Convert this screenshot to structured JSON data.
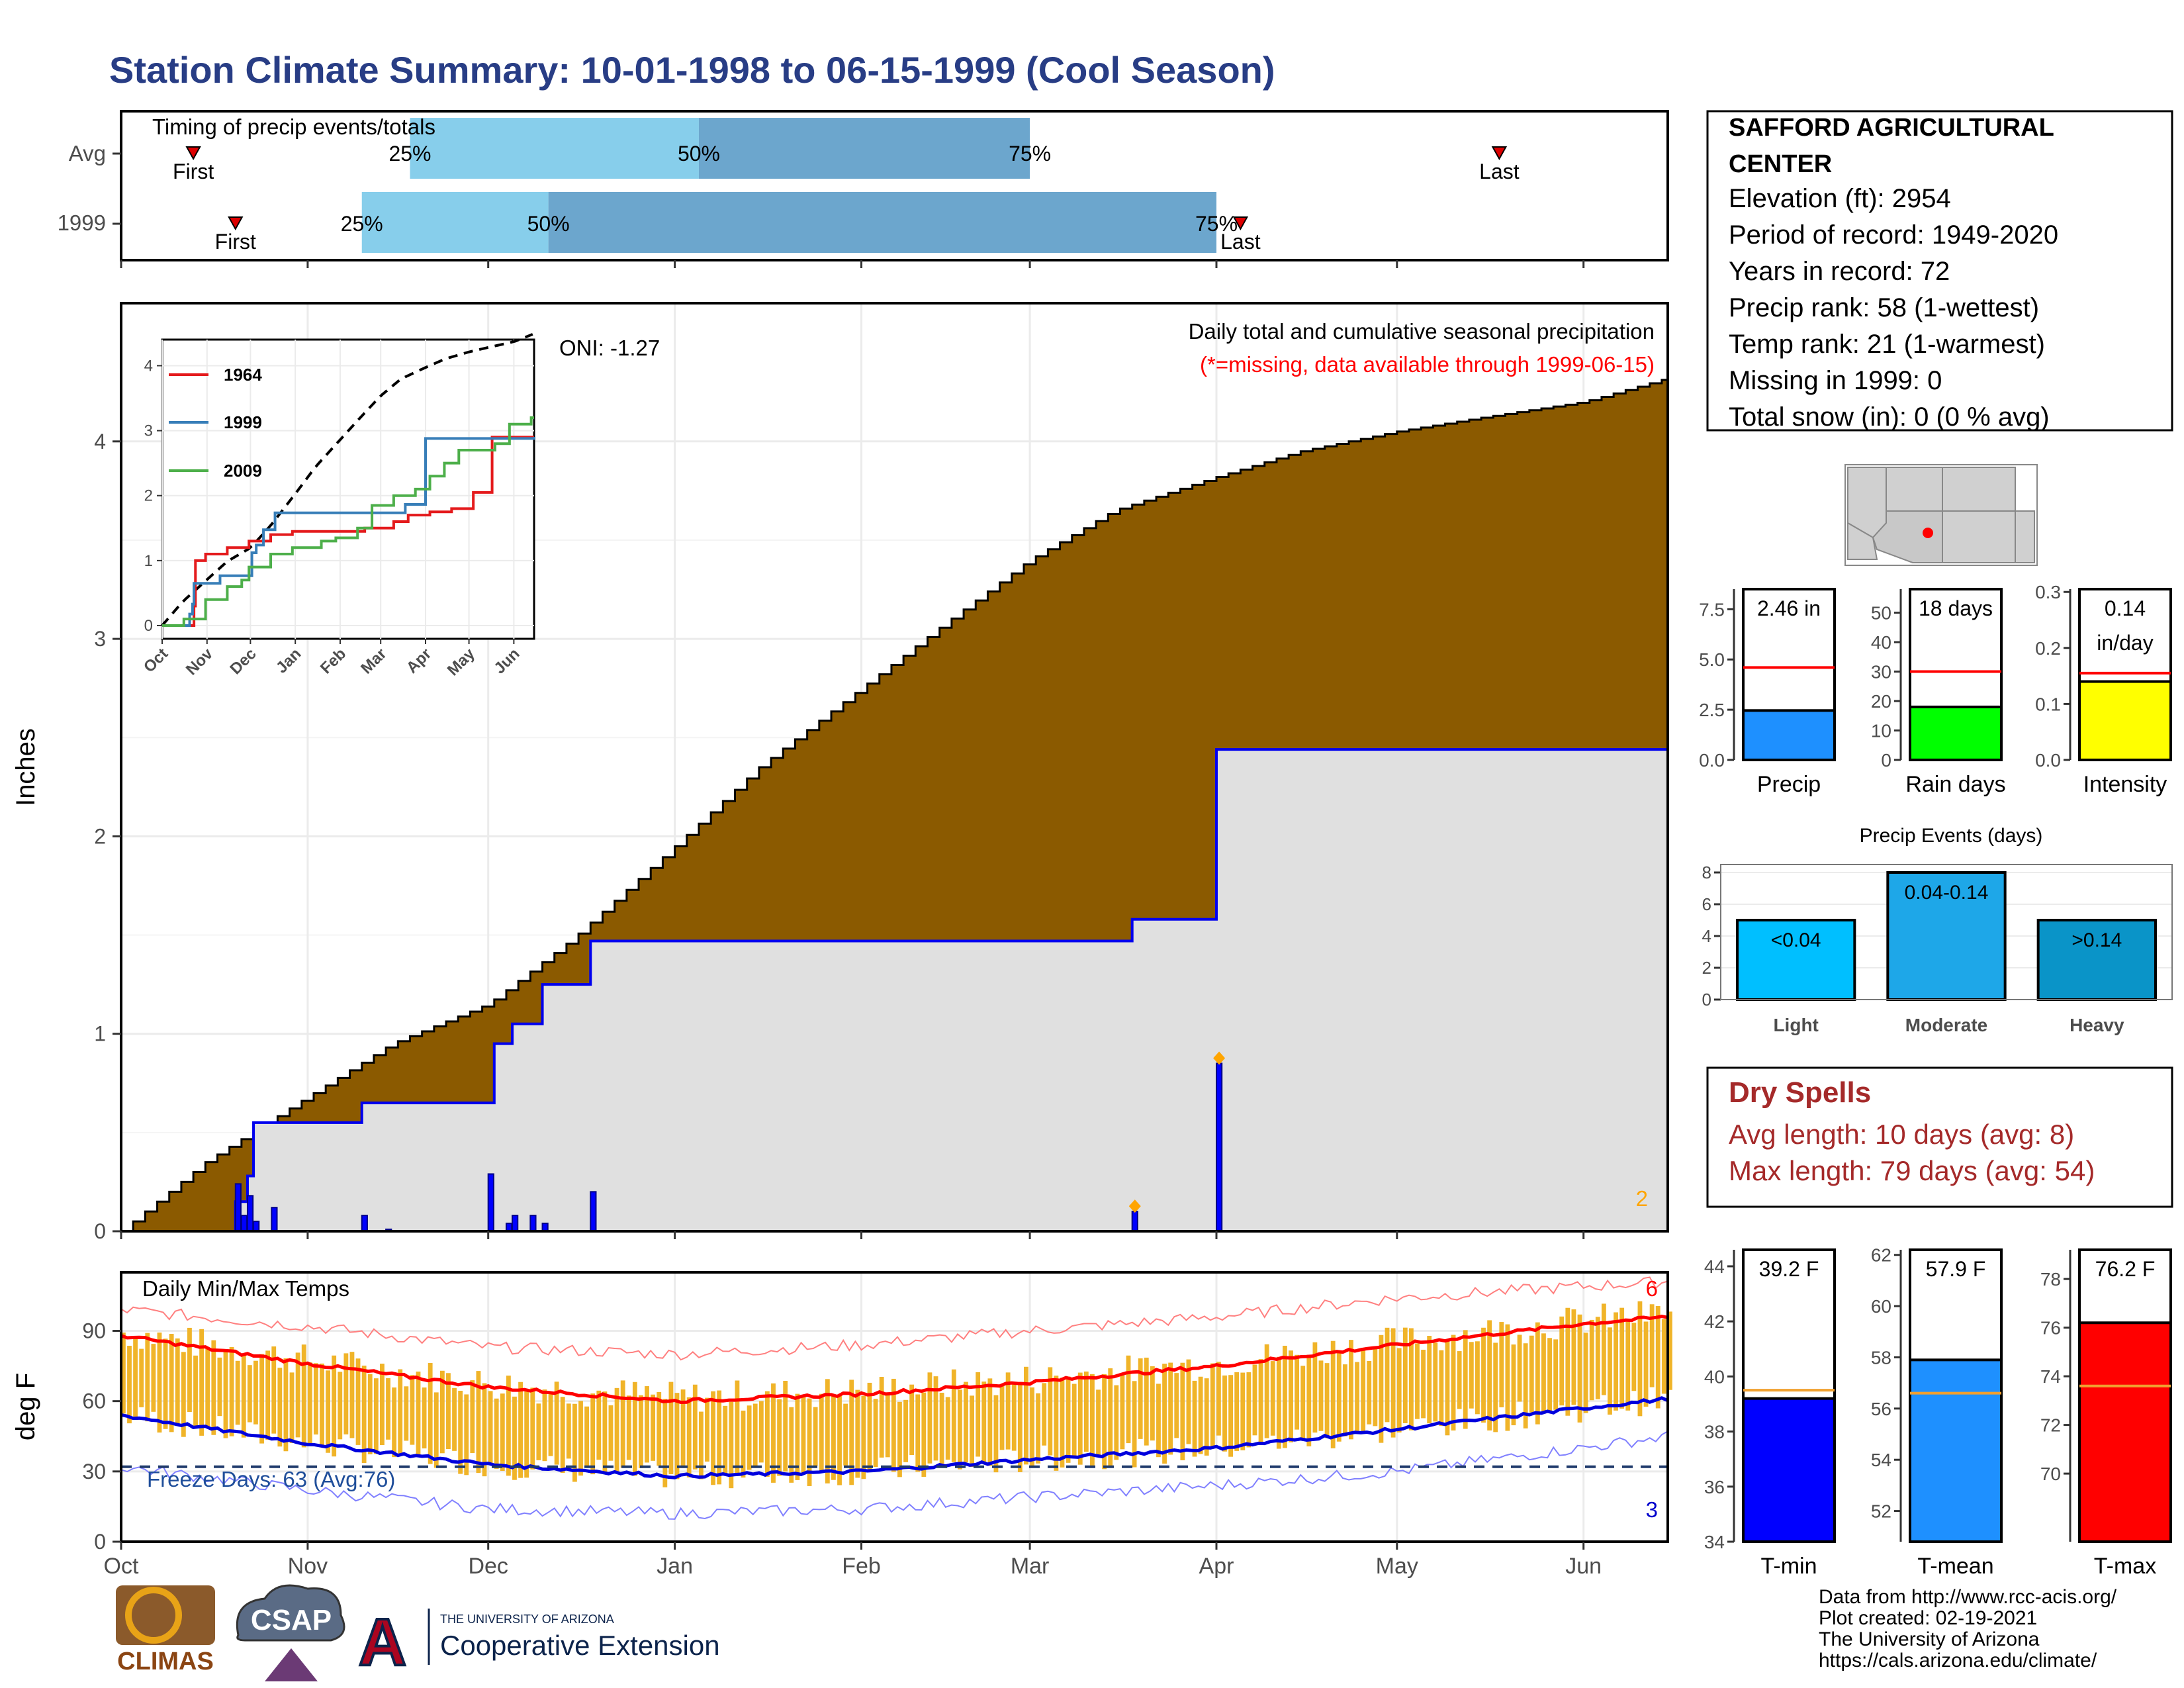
{
  "title": "Station Climate Summary: 10-01-1998 to 06-15-1999 (Cool Season)",
  "timing": {
    "title": "Timing of precip events/totals",
    "rows": [
      "Avg",
      "1999"
    ],
    "first_label": "First",
    "last_label": "Last",
    "pct_labels": [
      "25%",
      "50%",
      "75%"
    ]
  },
  "precip_panel": {
    "ylabel": "Inches",
    "note1": "Daily total and cumulative seasonal precipitation",
    "note2": "(*=missing, data available through 1999-06-15)",
    "oni": "ONI: -1.27",
    "corner_count": "2"
  },
  "inset": {
    "legend": [
      "1964",
      "1999",
      "2009"
    ]
  },
  "temp_panel": {
    "ylabel": "deg F",
    "title": "Daily Min/Max Temps",
    "freeze": "Freeze Days: 63 (Avg:76)",
    "count_top": "6",
    "count_bottom": "3"
  },
  "months": [
    "Oct",
    "Nov",
    "Dec",
    "Jan",
    "Feb",
    "Mar",
    "Apr",
    "May",
    "Jun"
  ],
  "station_info": {
    "name_line1": "SAFFORD AGRICULTURAL",
    "name_line2": "CENTER",
    "lines": [
      "Elevation (ft): 2954",
      "Period of record: 1949-2020",
      "Years in record: 72",
      "Precip rank: 58 (1-wettest)",
      "Temp rank: 21 (1-warmest)",
      "Missing in 1999: 0",
      "Total snow (in): 0 (0 % avg)"
    ]
  },
  "mini_bars": [
    {
      "name": "Precip",
      "value_label": "2.46 in",
      "value": 2.46,
      "avg": 4.6,
      "ylim": [
        0,
        8.5
      ],
      "ticks": [
        "0.0",
        "2.5",
        "5.0",
        "7.5"
      ],
      "tickvals": [
        0,
        2.5,
        5,
        7.5
      ],
      "color": "#1E90FF"
    },
    {
      "name": "Rain days",
      "value_label": "18 days",
      "value": 18,
      "avg": 30,
      "ylim": [
        0,
        58
      ],
      "ticks": [
        "0",
        "10",
        "20",
        "30",
        "40",
        "50"
      ],
      "tickvals": [
        0,
        10,
        20,
        30,
        40,
        50
      ],
      "color": "#00FF00"
    },
    {
      "name": "Intensity",
      "value_label": "0.14",
      "value_label2": "in/day",
      "value": 0.14,
      "avg": 0.155,
      "ylim": [
        0,
        0.305
      ],
      "ticks": [
        "0.0",
        "0.1",
        "0.2",
        "0.3"
      ],
      "tickvals": [
        0,
        0.1,
        0.2,
        0.3
      ],
      "color": "#FFFF00"
    }
  ],
  "precip_events": {
    "title": "Precip Events (days)",
    "categories": [
      "Light",
      "Moderate",
      "Heavy"
    ],
    "labels": [
      "<0.04",
      "0.04-0.14",
      ">0.14"
    ],
    "values": [
      5,
      8,
      5
    ],
    "colors": [
      "#00BFFF",
      "#1EA7E8",
      "#0A94C8"
    ],
    "ticks": [
      "0",
      "2",
      "4",
      "6",
      "8"
    ],
    "tickvals": [
      0,
      2,
      4,
      6,
      8
    ]
  },
  "dry_spells": {
    "title": "Dry Spells",
    "line1": "Avg length: 10 days (avg: 8)",
    "line2": "Max length: 79 days (avg: 54)"
  },
  "temp_bars": [
    {
      "name": "T-min",
      "value_label": "39.2 F",
      "value": 39.2,
      "avg": 39.5,
      "ylim": [
        34,
        44.6
      ],
      "ticks": [
        "34",
        "36",
        "38",
        "40",
        "42",
        "44"
      ],
      "tickvals": [
        34,
        36,
        38,
        40,
        42,
        44
      ],
      "color": "#0000FF"
    },
    {
      "name": "T-mean",
      "value_label": "57.9 F",
      "value": 57.9,
      "avg": 56.6,
      "ylim": [
        50.8,
        62.2
      ],
      "ticks": [
        "52",
        "54",
        "56",
        "58",
        "60",
        "62"
      ],
      "tickvals": [
        52,
        54,
        56,
        58,
        60,
        62
      ],
      "color": "#1E90FF"
    },
    {
      "name": "T-max",
      "value_label": "76.2 F",
      "value": 76.2,
      "avg": 73.6,
      "ylim": [
        67.2,
        79.2
      ],
      "ticks": [
        "70",
        "72",
        "74",
        "76",
        "78"
      ],
      "tickvals": [
        70,
        72,
        74,
        76,
        78
      ],
      "color": "#FF0000"
    }
  ],
  "footer": {
    "lines": [
      "Data from http://www.rcc-acis.org/",
      "Plot created: 02-19-2021",
      "The University of Arizona",
      "https://cals.arizona.edu/climate/"
    ]
  },
  "logos": {
    "climas": "CLIMAS",
    "csap": "CSAP",
    "ua_line1": "THE UNIVERSITY OF ARIZONA",
    "ua_line2": "Cooperative Extension"
  },
  "chart_data": [
    {
      "type": "bar",
      "title": "Timing of precip events/totals",
      "categories": [
        "Avg",
        "1999"
      ],
      "series": [
        {
          "name": "First",
          "values": [
            "1998-10-13",
            "1998-10-20"
          ]
        },
        {
          "name": "25%",
          "values": [
            "1998-11-18",
            "1998-11-10"
          ]
        },
        {
          "name": "50%",
          "values": [
            "1999-01-05",
            "1998-12-11"
          ]
        },
        {
          "name": "75%",
          "values": [
            "1999-03-01",
            "1999-04-01"
          ]
        },
        {
          "name": "Last",
          "values": [
            "1999-05-18",
            "1999-04-05"
          ]
        }
      ]
    },
    {
      "type": "area",
      "title": "Daily total and cumulative seasonal precipitation",
      "ylabel": "Inches",
      "ylim": [
        0,
        4.7
      ],
      "avg_cumulative": {
        "x": [
          "1998-10-01",
          "1998-10-15",
          "1998-11-01",
          "1998-11-15",
          "1998-12-01",
          "1998-12-15",
          "1999-01-01",
          "1999-01-15",
          "1999-02-01",
          "1999-02-15",
          "1999-03-01",
          "1999-03-15",
          "1999-04-01",
          "1999-04-15",
          "1999-05-01",
          "1999-05-15",
          "1999-06-01",
          "1999-06-15"
        ],
        "y": [
          0,
          0.35,
          0.68,
          0.95,
          1.15,
          1.48,
          1.95,
          2.35,
          2.75,
          3.08,
          3.4,
          3.65,
          3.82,
          3.95,
          4.05,
          4.12,
          4.2,
          4.32
        ]
      },
      "cumulative_1999": {
        "x": [
          "1998-10-01",
          "1998-10-20",
          "1998-10-22",
          "1998-10-23",
          "1998-11-10",
          "1998-12-01",
          "1998-12-02",
          "1998-12-05",
          "1998-12-10",
          "1998-12-18",
          "1999-03-18",
          "1999-04-01",
          "1999-06-15"
        ],
        "y": [
          0,
          0.15,
          0.28,
          0.55,
          0.65,
          0.65,
          0.95,
          1.05,
          1.25,
          1.47,
          1.58,
          2.44,
          2.46
        ]
      },
      "daily_1999": {
        "x": [
          "1998-10-20",
          "1998-10-21",
          "1998-10-22",
          "1998-10-23",
          "1998-10-26",
          "1998-11-10",
          "1998-11-14",
          "1998-12-01",
          "1998-12-04",
          "1998-12-05",
          "1998-12-08",
          "1998-12-10",
          "1998-12-18",
          "1999-03-18",
          "1999-04-01"
        ],
        "y": [
          0.24,
          0.08,
          0.18,
          0.05,
          0.12,
          0.08,
          0.01,
          0.29,
          0.04,
          0.08,
          0.08,
          0.04,
          0.2,
          0.1,
          0.85
        ]
      }
    },
    {
      "type": "line",
      "title": "Daily Min/Max Temps",
      "ylabel": "deg F",
      "ylim": [
        0,
        115
      ],
      "freeze_line": 32,
      "avg_max": {
        "x": [
          "1998-10-01",
          "1998-11-01",
          "1998-12-01",
          "1999-01-01",
          "1999-02-01",
          "1999-03-01",
          "1999-04-01",
          "1999-05-01",
          "1999-06-01",
          "1999-06-15"
        ],
        "y": [
          88,
          76,
          66,
          60,
          63,
          68,
          75,
          84,
          93,
          96
        ]
      },
      "avg_min": {
        "x": [
          "1998-10-01",
          "1998-11-01",
          "1998-12-01",
          "1999-01-01",
          "1999-02-01",
          "1999-03-01",
          "1999-04-01",
          "1999-05-01",
          "1999-06-01",
          "1999-06-15"
        ],
        "y": [
          54,
          42,
          33,
          28,
          30,
          35,
          40,
          48,
          57,
          61
        ]
      },
      "record_high": {
        "x": [
          "1998-10-01",
          "1998-11-01",
          "1998-12-01",
          "1999-01-01",
          "1999-02-01",
          "1999-03-01",
          "1999-04-01",
          "1999-05-01",
          "1999-06-01",
          "1999-06-15"
        ],
        "y": [
          99,
          92,
          83,
          80,
          84,
          90,
          96,
          104,
          109,
          111
        ]
      },
      "record_low": {
        "x": [
          "1998-10-01",
          "1998-11-01",
          "1998-12-01",
          "1999-01-01",
          "1999-02-01",
          "1999-03-01",
          "1999-04-01",
          "1999-05-01",
          "1999-06-01",
          "1999-06-15"
        ],
        "y": [
          32,
          22,
          14,
          12,
          14,
          19,
          24,
          30,
          40,
          45
        ]
      }
    },
    {
      "type": "bar",
      "title": "Precip Events (days)",
      "categories": [
        "Light",
        "Moderate",
        "Heavy"
      ],
      "values": [
        5,
        8,
        5
      ],
      "ylim": [
        0,
        8.5
      ]
    },
    {
      "type": "bar",
      "categories": [
        "Precip",
        "Rain days",
        "Intensity",
        "T-min",
        "T-mean",
        "T-max"
      ],
      "values": [
        2.46,
        18,
        0.14,
        39.2,
        57.9,
        76.2
      ]
    }
  ]
}
